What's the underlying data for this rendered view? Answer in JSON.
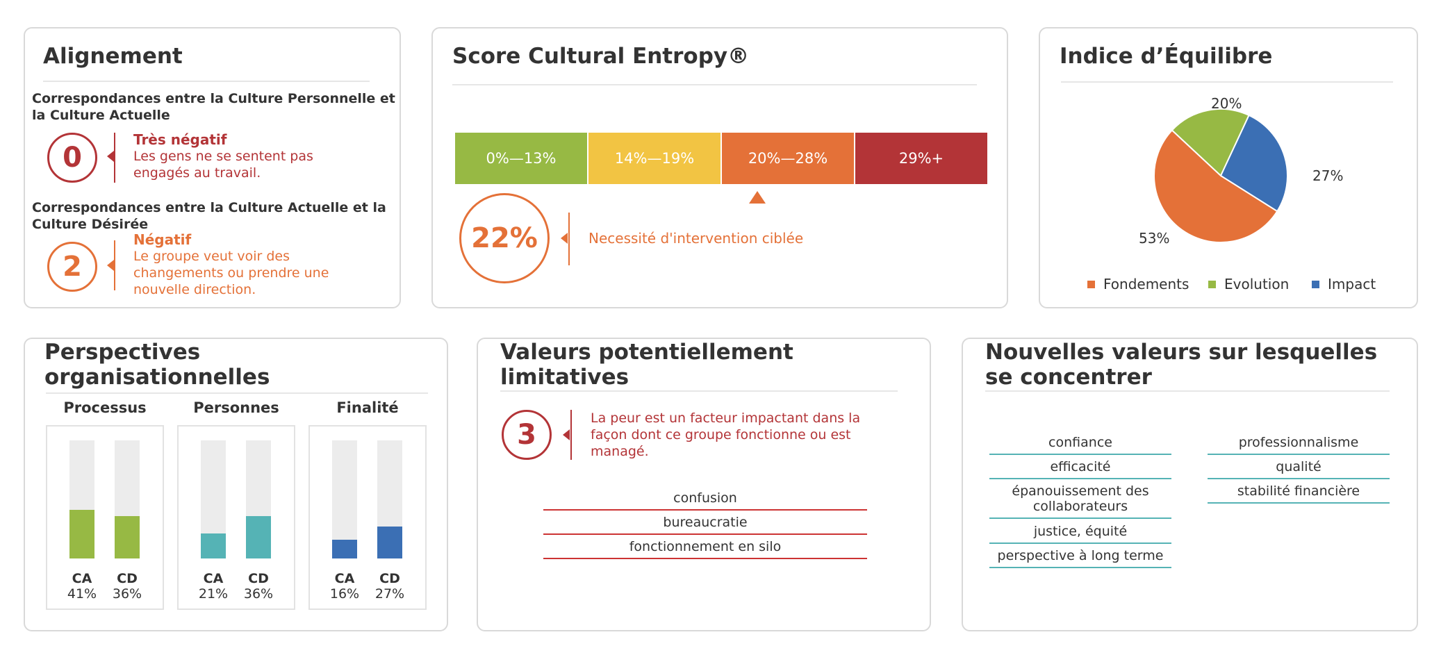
{
  "colors": {
    "red": "#b33437",
    "orange": "#e47138",
    "green": "#97b944",
    "yellow": "#f2c443",
    "teal": "#55b3b5",
    "blue": "#3b6fb4",
    "grey_track": "#ececec"
  },
  "alignment": {
    "title": "Alignement",
    "item1": {
      "heading": "Correspondances entre la Culture Personnelle et la Culture Actuelle",
      "number": "0",
      "status": "Très négatif",
      "description": "Les gens ne se sentent pas engagés au travail."
    },
    "item2": {
      "heading": "Correspondances entre la Culture Actuelle et la Culture Désirée",
      "number": "2",
      "status": "Négatif",
      "description": "Le groupe veut voir des changements ou prendre une nouvelle direction."
    }
  },
  "entropy": {
    "title": "Score Cultural Entropy®",
    "segments": [
      "0%—13%",
      "14%—19%",
      "20%—28%",
      "29%+"
    ],
    "selected_segment": 2,
    "score": "22%",
    "message": "Necessité d'intervention ciblée"
  },
  "balance": {
    "title": "Indice d’Équilibre",
    "legend": [
      "Fondements",
      "Evolution",
      "Impact"
    ]
  },
  "chart_data": {
    "type": "pie",
    "categories": [
      "Fondements",
      "Evolution",
      "Impact"
    ],
    "values": [
      53,
      20,
      27
    ],
    "labels": [
      "53%",
      "20%",
      "27%"
    ],
    "colors": [
      "#e47138",
      "#97b944",
      "#3b6fb4"
    ],
    "legend_placement": "bottom"
  },
  "perspectives": {
    "title": "Perspectives organisationnelles",
    "groups": [
      {
        "name": "Processus",
        "color": "#97b944",
        "bars": [
          {
            "label": "CA",
            "value_text": "41%",
            "value": 41
          },
          {
            "label": "CD",
            "value_text": "36%",
            "value": 36
          }
        ]
      },
      {
        "name": "Personnes",
        "color": "#55b3b5",
        "bars": [
          {
            "label": "CA",
            "value_text": "21%",
            "value": 21
          },
          {
            "label": "CD",
            "value_text": "36%",
            "value": 36
          }
        ]
      },
      {
        "name": "Finalité",
        "color": "#3b6fb4",
        "bars": [
          {
            "label": "CA",
            "value_text": "16%",
            "value": 16
          },
          {
            "label": "CD",
            "value_text": "27%",
            "value": 27
          }
        ]
      }
    ]
  },
  "limiting": {
    "title": "Valeurs potentiellement limitatives",
    "number": "3",
    "message": "La peur est un facteur impactant dans la façon dont ce groupe fonctionne ou est managé.",
    "values": [
      "confusion",
      "bureaucratie",
      "fonctionnement en silo"
    ]
  },
  "new_values": {
    "title": "Nouvelles valeurs sur lesquelles se concentrer",
    "col1": [
      "confiance",
      "efficacité",
      "épanouissement des collaborateurs",
      "justice, équité",
      "perspective à long terme"
    ],
    "col2": [
      "professionnalisme",
      "qualité",
      "stabilité financière"
    ]
  }
}
